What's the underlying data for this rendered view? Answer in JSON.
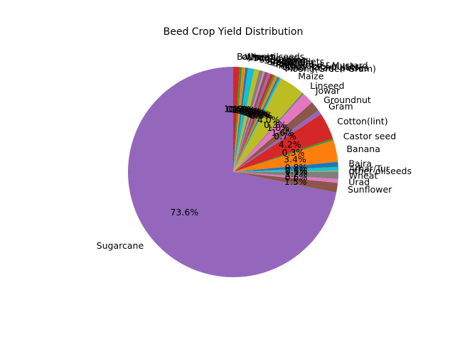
{
  "chart_data": {
    "type": "pie",
    "title": "Beed Crop Yield Distribution",
    "start_angle_deg": 90,
    "direction": "counterclockwise",
    "slices": [
      {
        "label": "Sugarcane",
        "value": 73.6,
        "pct_text": "73.6%",
        "color": "#9467bd"
      },
      {
        "label": "Sunflower",
        "value": 1.5,
        "pct_text": "1.5%",
        "color": "#8c564b"
      },
      {
        "label": "Urad",
        "value": 0.6,
        "pct_text": "0.6%",
        "color": "#e377c2"
      },
      {
        "label": "Wheat",
        "value": 1.2,
        "pct_text": "1.2%",
        "color": "#7f7f7f"
      },
      {
        "label": "other oilseeds",
        "value": 0.1,
        "pct_text": "0.1%",
        "color": "#bcbd22"
      },
      {
        "label": "Arhar/Tur",
        "value": 0.6,
        "pct_text": "0.6%",
        "color": "#17becf"
      },
      {
        "label": "Bajra",
        "value": 0.8,
        "pct_text": "0.8%",
        "color": "#1f77b4"
      },
      {
        "label": "Banana",
        "value": 3.4,
        "pct_text": "3.4%",
        "color": "#ff7f0e"
      },
      {
        "label": "Castor seed",
        "value": 0.3,
        "pct_text": "0.3%",
        "color": "#2ca02c"
      },
      {
        "label": "Cotton(lint)",
        "value": 4.2,
        "pct_text": "4.2%",
        "color": "#d62728"
      },
      {
        "label": "Gram",
        "value": 0.7,
        "pct_text": "0.7%",
        "color": "#9467bd"
      },
      {
        "label": "Groundnut",
        "value": 1.6,
        "pct_text": "1.6%",
        "color": "#8c564b"
      },
      {
        "label": "Jowar",
        "value": 1.8,
        "pct_text": "1.8%",
        "color": "#e377c2"
      },
      {
        "label": "Linseed",
        "value": 0.3,
        "pct_text": "0.3%",
        "color": "#7f7f7f"
      },
      {
        "label": "Maize",
        "value": 4.0,
        "pct_text": "4.0%",
        "color": "#bcbd22"
      },
      {
        "label": "Moong(Green Gram)",
        "value": 0.3,
        "pct_text": "0.3%",
        "color": "#17becf"
      },
      {
        "label": "Other Kharif pulses",
        "value": 0.3,
        "pct_text": "0.3%",
        "color": "#1f77b4"
      },
      {
        "label": "Other Rabi pulses",
        "value": 0.4,
        "pct_text": "0.4%",
        "color": "#ff7f0e"
      },
      {
        "label": "Rapeseed &Mustard",
        "value": 0.3,
        "pct_text": "0.3%",
        "color": "#2ca02c"
      },
      {
        "label": "Rice",
        "value": 0.5,
        "pct_text": "0.5%",
        "color": "#d62728"
      },
      {
        "label": "Safflower",
        "value": 0.4,
        "pct_text": "0.4%",
        "color": "#9467bd"
      },
      {
        "label": "Sesamum",
        "value": 0.5,
        "pct_text": "0.5%",
        "color": "#8c564b"
      },
      {
        "label": "Small millets",
        "value": 0.3,
        "pct_text": "0.3%",
        "color": "#e377c2"
      },
      {
        "label": "Soyabean",
        "value": 0.6,
        "pct_text": "0.6%",
        "color": "#7f7f7f"
      },
      {
        "label": "Sugarcane",
        "value": 0.8,
        "pct_text": "0.8%",
        "color": "#bcbd22"
      },
      {
        "label": "Sunflower",
        "value": 1.0,
        "pct_text": "1.0%",
        "color": "#17becf"
      },
      {
        "label": "Urad",
        "value": 0.4,
        "pct_text": "0.4%",
        "color": "#1f77b4"
      },
      {
        "label": "Wheat",
        "value": 0.5,
        "pct_text": "0.5%",
        "color": "#ff7f0e"
      },
      {
        "label": "other oilseeds",
        "value": 0.4,
        "pct_text": "0.4%",
        "color": "#2ca02c"
      },
      {
        "label": "Bajra",
        "value": 1.0,
        "pct_text": "1.0%",
        "color": "#d62728"
      }
    ]
  }
}
